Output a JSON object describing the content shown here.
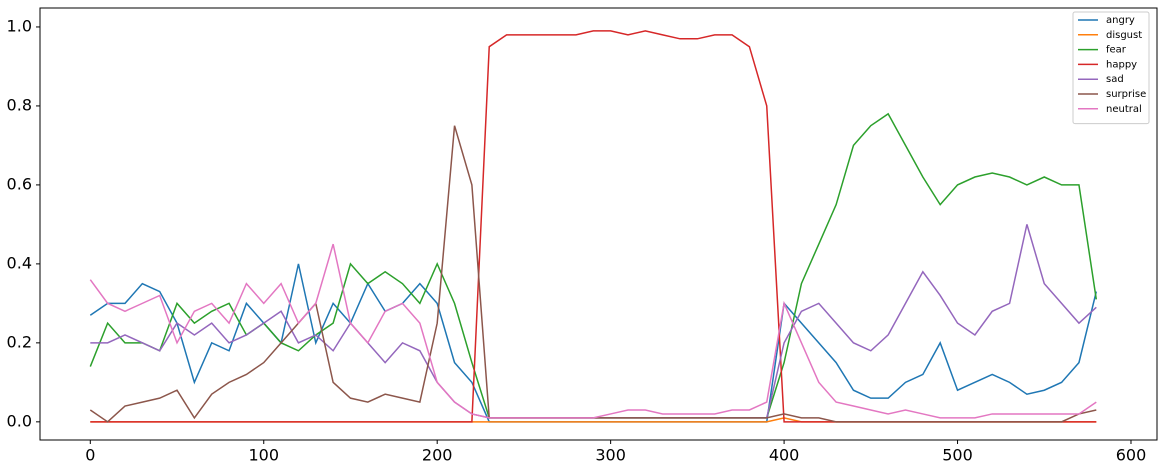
{
  "chart_data": {
    "type": "line",
    "x": [
      0,
      10,
      20,
      30,
      40,
      50,
      60,
      70,
      80,
      90,
      100,
      110,
      120,
      130,
      140,
      150,
      160,
      170,
      180,
      190,
      200,
      210,
      220,
      230,
      240,
      250,
      260,
      270,
      280,
      290,
      300,
      310,
      320,
      330,
      340,
      350,
      360,
      370,
      380,
      390,
      400,
      410,
      420,
      430,
      440,
      450,
      460,
      470,
      480,
      490,
      500,
      510,
      520,
      530,
      540,
      550,
      560,
      570,
      580
    ],
    "xlim": [
      -29,
      615
    ],
    "xticks": [
      0,
      100,
      200,
      300,
      400,
      500,
      600
    ],
    "ylim": [
      -0.046,
      1.048
    ],
    "yticks": [
      {
        "value": 0,
        "label": "0.0"
      },
      0.2,
      0.4,
      0.6,
      0.8,
      {
        "value": 1,
        "label": "1.0"
      }
    ],
    "legend": "upper right",
    "series": [
      {
        "name": "angry",
        "color": "#1f77b4",
        "values": [
          0.27,
          0.3,
          0.3,
          0.35,
          0.33,
          0.25,
          0.1,
          0.2,
          0.18,
          0.3,
          0.25,
          0.2,
          0.4,
          0.2,
          0.3,
          0.25,
          0.35,
          0.28,
          0.3,
          0.35,
          0.3,
          0.15,
          0.1,
          0,
          0,
          0,
          0,
          0,
          0,
          0,
          0,
          0,
          0,
          0,
          0,
          0,
          0,
          0,
          0,
          0,
          0.3,
          0.25,
          0.2,
          0.15,
          0.08,
          0.06,
          0.06,
          0.1,
          0.12,
          0.2,
          0.08,
          0.1,
          0.12,
          0.1,
          0.07,
          0.08,
          0.1,
          0.15,
          0.33
        ]
      },
      {
        "name": "disgust",
        "color": "#ff7f0e",
        "values": [
          0,
          0,
          0,
          0,
          0,
          0,
          0,
          0,
          0,
          0,
          0,
          0,
          0,
          0,
          0,
          0,
          0,
          0,
          0,
          0,
          0,
          0,
          0,
          0,
          0,
          0,
          0,
          0,
          0,
          0,
          0,
          0,
          0,
          0,
          0,
          0,
          0,
          0,
          0,
          0,
          0.01,
          0,
          0,
          0,
          0,
          0,
          0,
          0,
          0,
          0,
          0,
          0,
          0,
          0,
          0,
          0,
          0,
          0,
          0
        ]
      },
      {
        "name": "fear",
        "color": "#2ca02c",
        "values": [
          0.14,
          0.25,
          0.2,
          0.2,
          0.18,
          0.3,
          0.25,
          0.28,
          0.3,
          0.22,
          0.25,
          0.2,
          0.18,
          0.22,
          0.25,
          0.4,
          0.35,
          0.38,
          0.35,
          0.3,
          0.4,
          0.3,
          0.15,
          0.01,
          0.01,
          0.01,
          0.01,
          0.01,
          0.01,
          0.01,
          0.01,
          0.01,
          0.01,
          0.01,
          0.01,
          0.01,
          0.01,
          0.01,
          0.01,
          0.01,
          0.15,
          0.35,
          0.45,
          0.55,
          0.7,
          0.75,
          0.78,
          0.7,
          0.62,
          0.55,
          0.6,
          0.62,
          0.63,
          0.62,
          0.6,
          0.62,
          0.6,
          0.6,
          0.31
        ]
      },
      {
        "name": "happy",
        "color": "#d62728",
        "values": [
          0,
          0,
          0,
          0,
          0,
          0,
          0,
          0,
          0,
          0,
          0,
          0,
          0,
          0,
          0,
          0,
          0,
          0,
          0,
          0,
          0,
          0,
          0,
          0.95,
          0.98,
          0.98,
          0.98,
          0.98,
          0.98,
          0.99,
          0.99,
          0.98,
          0.99,
          0.98,
          0.97,
          0.97,
          0.98,
          0.98,
          0.95,
          0.8,
          0,
          0,
          0,
          0,
          0,
          0,
          0,
          0,
          0,
          0,
          0,
          0,
          0,
          0,
          0,
          0,
          0,
          0,
          0
        ]
      },
      {
        "name": "sad",
        "color": "#9467bd",
        "values": [
          0.2,
          0.2,
          0.22,
          0.2,
          0.18,
          0.25,
          0.22,
          0.25,
          0.2,
          0.22,
          0.25,
          0.28,
          0.2,
          0.22,
          0.18,
          0.25,
          0.2,
          0.15,
          0.2,
          0.18,
          0.1,
          0.05,
          0.02,
          0.01,
          0.01,
          0.01,
          0.01,
          0.01,
          0.01,
          0.01,
          0.01,
          0.01,
          0.01,
          0.01,
          0.01,
          0.01,
          0.01,
          0.01,
          0.01,
          0.01,
          0.2,
          0.28,
          0.3,
          0.25,
          0.2,
          0.18,
          0.22,
          0.3,
          0.38,
          0.32,
          0.25,
          0.22,
          0.28,
          0.3,
          0.5,
          0.35,
          0.3,
          0.25,
          0.29
        ]
      },
      {
        "name": "surprise",
        "color": "#8c564b",
        "values": [
          0.03,
          0,
          0.04,
          0.05,
          0.06,
          0.08,
          0.01,
          0.07,
          0.1,
          0.12,
          0.15,
          0.2,
          0.25,
          0.3,
          0.1,
          0.06,
          0.05,
          0.07,
          0.06,
          0.05,
          0.25,
          0.75,
          0.6,
          0.01,
          0.01,
          0.01,
          0.01,
          0.01,
          0.01,
          0.01,
          0.01,
          0.01,
          0.01,
          0.01,
          0.01,
          0.01,
          0.01,
          0.01,
          0.01,
          0.01,
          0.02,
          0.01,
          0.01,
          0,
          0,
          0,
          0,
          0,
          0,
          0,
          0,
          0,
          0,
          0,
          0,
          0,
          0,
          0.02,
          0.03
        ]
      },
      {
        "name": "neutral",
        "color": "#e377c2",
        "values": [
          0.36,
          0.3,
          0.28,
          0.3,
          0.32,
          0.2,
          0.28,
          0.3,
          0.25,
          0.35,
          0.3,
          0.35,
          0.25,
          0.3,
          0.45,
          0.25,
          0.2,
          0.28,
          0.3,
          0.25,
          0.1,
          0.05,
          0.02,
          0.01,
          0.01,
          0.01,
          0.01,
          0.01,
          0.01,
          0.01,
          0.02,
          0.03,
          0.03,
          0.02,
          0.02,
          0.02,
          0.02,
          0.03,
          0.03,
          0.05,
          0.3,
          0.2,
          0.1,
          0.05,
          0.04,
          0.03,
          0.02,
          0.03,
          0.02,
          0.01,
          0.01,
          0.01,
          0.02,
          0.02,
          0.02,
          0.02,
          0.02,
          0.02,
          0.05
        ]
      }
    ]
  }
}
